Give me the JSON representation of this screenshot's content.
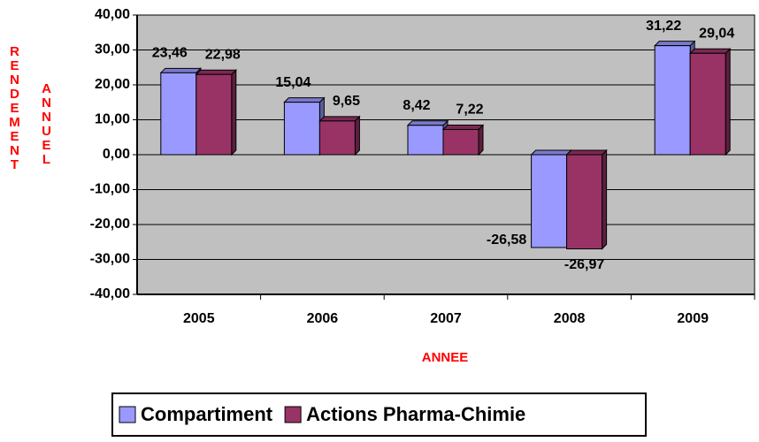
{
  "chart_data": {
    "type": "bar",
    "ylabel": [
      "RENDEMENT",
      "ANNUEL"
    ],
    "xlabel": "ANNEE",
    "categories": [
      "2005",
      "2006",
      "2007",
      "2008",
      "2009"
    ],
    "series": [
      {
        "name": "Compartiment",
        "color": "#9999ff",
        "values": [
          23.46,
          15.04,
          8.42,
          -26.58,
          31.22
        ],
        "value_labels": [
          "23,46",
          "15,04",
          "8,42",
          "-26,58",
          "31,22"
        ]
      },
      {
        "name": "Actions Pharma-Chimie",
        "color": "#993366",
        "values": [
          22.98,
          9.65,
          7.22,
          -26.97,
          29.04
        ],
        "value_labels": [
          "22,98",
          "9,65",
          "7,22",
          "-26,97",
          "29,04"
        ]
      }
    ],
    "ylim": [
      -40,
      40
    ],
    "yticks": [
      {
        "value": -40,
        "label": "-40,00"
      },
      {
        "value": -30,
        "label": "-30,00"
      },
      {
        "value": -20,
        "label": "-20,00"
      },
      {
        "value": -10,
        "label": "-10,00"
      },
      {
        "value": 0,
        "label": "0,00"
      },
      {
        "value": 10,
        "label": "10,00"
      },
      {
        "value": 20,
        "label": "20,00"
      },
      {
        "value": 30,
        "label": "30,00"
      },
      {
        "value": 40,
        "label": "40,00"
      }
    ],
    "grid": true,
    "plot_background": "#c0c0c0"
  }
}
